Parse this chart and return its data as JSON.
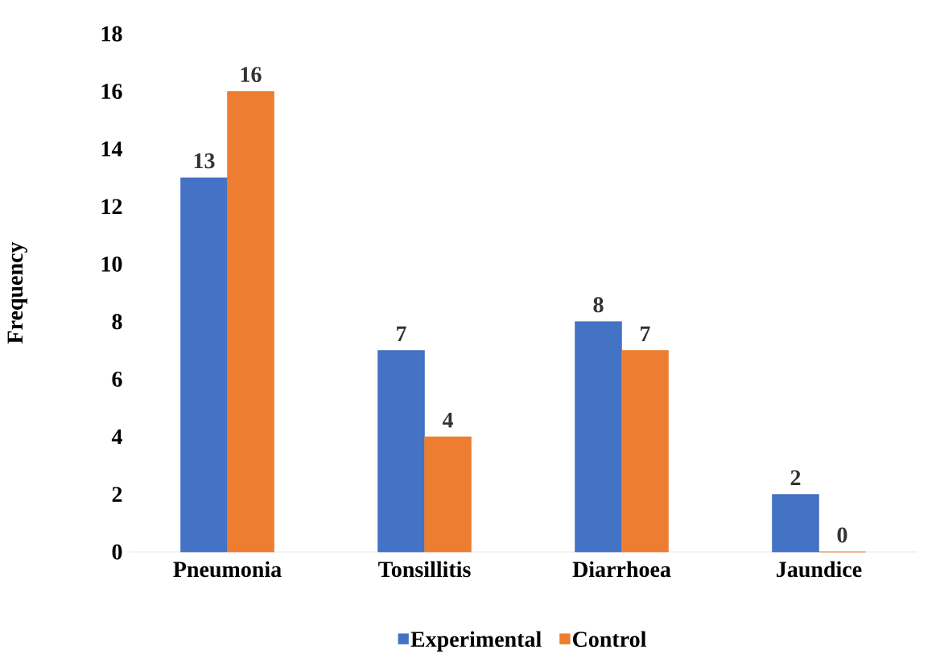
{
  "chart_data": {
    "type": "bar",
    "ylabel": "Frequency",
    "categories": [
      "Pneumonia",
      "Tonsillitis",
      "Diarrhoea",
      "Jaundice"
    ],
    "series": [
      {
        "name": "Experimental",
        "color": "#4472c4",
        "values": [
          13,
          7,
          8,
          2
        ]
      },
      {
        "name": "Control",
        "color": "#ed7d31",
        "values": [
          16,
          4,
          7,
          0
        ]
      }
    ],
    "ylim": [
      0,
      18
    ],
    "yticks": [
      0,
      2,
      4,
      6,
      8,
      10,
      12,
      14,
      16,
      18
    ],
    "data_labels": true,
    "legend": "bottom",
    "grid": false
  }
}
